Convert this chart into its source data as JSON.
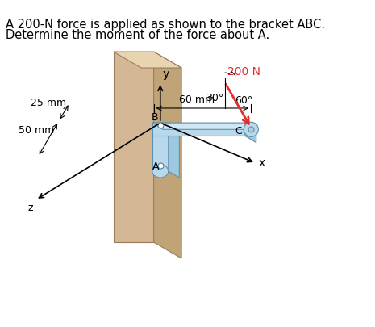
{
  "title_line1": "A 200-N force is applied as shown to the bracket ABC.",
  "title_line2": "Determine the moment of the force about A.",
  "bg_color": "#ffffff",
  "wall_front_color": "#d4b896",
  "wall_side_color": "#c0a478",
  "wall_top_color": "#e8d4b0",
  "bracket_face_color": "#b8d8ec",
  "bracket_side_color": "#9ec8e0",
  "bracket_top_color": "#d0e8f4",
  "force_color": "#e03030",
  "force_label": "200 N",
  "angle1_label": "30°",
  "angle2_label": "60°",
  "dim_60mm": "60 mm",
  "dim_25mm": "25 mm",
  "dim_50mm": "50 mm",
  "label_A": "A",
  "label_B": "B",
  "label_C": "C",
  "label_x": "x",
  "label_y": "y",
  "label_z": "z"
}
